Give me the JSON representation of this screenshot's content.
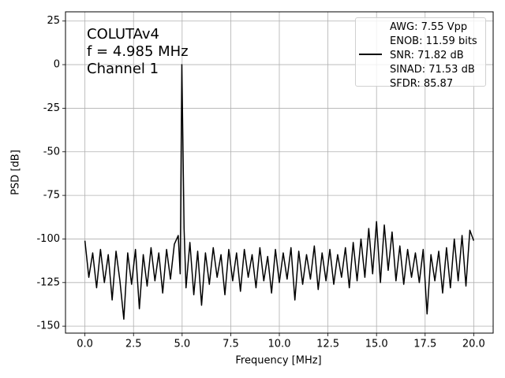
{
  "chart_data": {
    "type": "line",
    "xlabel": "Frequency [MHz]",
    "ylabel": "PSD [dB]",
    "annotation": "COLUTAv4\nf = 4.985 MHz\nChannel 1",
    "x": [
      0,
      0.2,
      0.4,
      0.6,
      0.8,
      1.0,
      1.2,
      1.4,
      1.6,
      1.8,
      2.0,
      2.2,
      2.4,
      2.6,
      2.8,
      3.0,
      3.2,
      3.4,
      3.6,
      3.8,
      4.0,
      4.2,
      4.4,
      4.6,
      4.8,
      4.9,
      4.985,
      5.1,
      5.2,
      5.4,
      5.6,
      5.8,
      6.0,
      6.2,
      6.4,
      6.6,
      6.8,
      7.0,
      7.2,
      7.4,
      7.6,
      7.8,
      8.0,
      8.2,
      8.4,
      8.6,
      8.8,
      9.0,
      9.2,
      9.4,
      9.6,
      9.8,
      10.0,
      10.2,
      10.4,
      10.6,
      10.8,
      11.0,
      11.2,
      11.4,
      11.6,
      11.8,
      12.0,
      12.2,
      12.4,
      12.6,
      12.8,
      13.0,
      13.2,
      13.4,
      13.6,
      13.8,
      14.0,
      14.2,
      14.4,
      14.6,
      14.8,
      15.0,
      15.2,
      15.4,
      15.6,
      15.8,
      16.0,
      16.2,
      16.4,
      16.6,
      16.8,
      17.0,
      17.2,
      17.4,
      17.6,
      17.8,
      18.0,
      18.2,
      18.4,
      18.6,
      18.8,
      19.0,
      19.2,
      19.4,
      19.6,
      19.8,
      20.0
    ],
    "series": [
      {
        "name": "AWG: 7.55 Vpp\nENOB: 11.59 bits\nSNR: 71.82 dB\nSINAD: 71.53 dB\nSFDR: 85.87",
        "color": "#000000",
        "values": [
          -101,
          -122,
          -108,
          -128,
          -106,
          -125,
          -109,
          -135,
          -107,
          -124,
          -146,
          -108,
          -126,
          -106,
          -140,
          -109,
          -127,
          -105,
          -124,
          -108,
          -131,
          -106,
          -123,
          -103,
          -98,
          -120,
          0,
          -94,
          -128,
          -102,
          -132,
          -107,
          -138,
          -108,
          -126,
          -105,
          -122,
          -109,
          -132,
          -106,
          -124,
          -108,
          -130,
          -106,
          -122,
          -109,
          -128,
          -105,
          -124,
          -110,
          -131,
          -106,
          -125,
          -108,
          -123,
          -105,
          -135,
          -107,
          -126,
          -109,
          -123,
          -104,
          -129,
          -108,
          -124,
          -106,
          -126,
          -109,
          -122,
          -105,
          -128,
          -102,
          -124,
          -100,
          -122,
          -94,
          -120,
          -90,
          -125,
          -92,
          -118,
          -96,
          -124,
          -104,
          -126,
          -106,
          -122,
          -108,
          -125,
          -106,
          -143,
          -109,
          -124,
          -107,
          -131,
          -105,
          -128,
          -100,
          -124,
          -98,
          -127,
          -95,
          -101
        ]
      }
    ],
    "xlim": [
      -1.0,
      21.0
    ],
    "ylim": [
      -154,
      30.3
    ],
    "xticks": [
      {
        "value": 0,
        "label": "0.0"
      },
      2.5,
      {
        "value": 5,
        "label": "5.0"
      },
      7.5,
      {
        "value": 10,
        "label": "10.0"
      },
      12.5,
      {
        "value": 15,
        "label": "15.0"
      },
      17.5,
      {
        "value": 20,
        "label": "20.0"
      }
    ],
    "yticks": [
      -150,
      -125,
      -100,
      -75,
      -50,
      -25,
      0,
      25
    ],
    "grid": true,
    "legend": "upper right"
  }
}
